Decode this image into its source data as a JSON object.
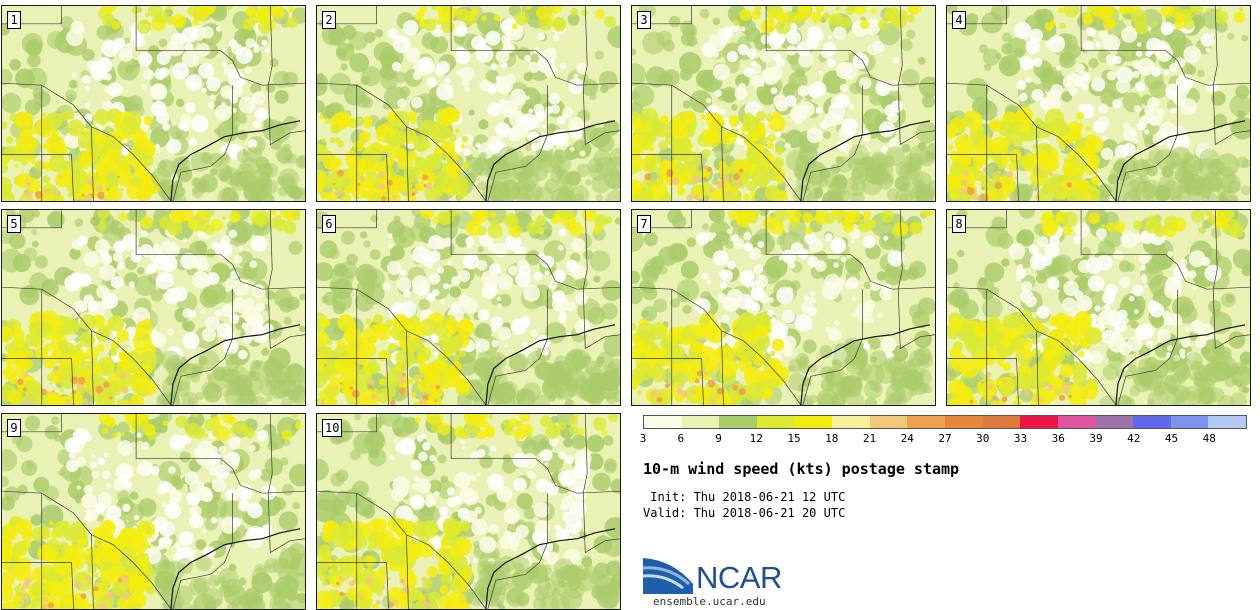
{
  "panels": [
    {
      "id": "p1",
      "label": "1"
    },
    {
      "id": "p2",
      "label": "2"
    },
    {
      "id": "p3",
      "label": "3"
    },
    {
      "id": "p4",
      "label": "4"
    },
    {
      "id": "p5",
      "label": "5"
    },
    {
      "id": "p6",
      "label": "6"
    },
    {
      "id": "p7",
      "label": "7"
    },
    {
      "id": "p8",
      "label": "8"
    },
    {
      "id": "p9",
      "label": "9"
    },
    {
      "id": "p10",
      "label": "10"
    }
  ],
  "colorbar": {
    "colors": [
      "#fbfbe6",
      "#e9f2b4",
      "#a9cc6a",
      "#dbe935",
      "#f5ec0f",
      "#f8eea0",
      "#f2c97b",
      "#efa14d",
      "#e8873b",
      "#de7a3c",
      "#ee1446",
      "#e0559f",
      "#9e72a8",
      "#6068ec",
      "#7c93ee",
      "#b4c9f7"
    ],
    "ticks": [
      "3",
      "6",
      "9",
      "12",
      "15",
      "18",
      "21",
      "24",
      "27",
      "30",
      "33",
      "36",
      "39",
      "42",
      "45",
      "48"
    ]
  },
  "title": "10-m wind speed (kts) postage stamp",
  "init_line": " Init: Thu 2018-06-21 12 UTC",
  "valid_line": "Valid: Thu 2018-06-21 20 UTC",
  "logo_text": "NCAR",
  "site": "ensemble.ucar.edu"
}
